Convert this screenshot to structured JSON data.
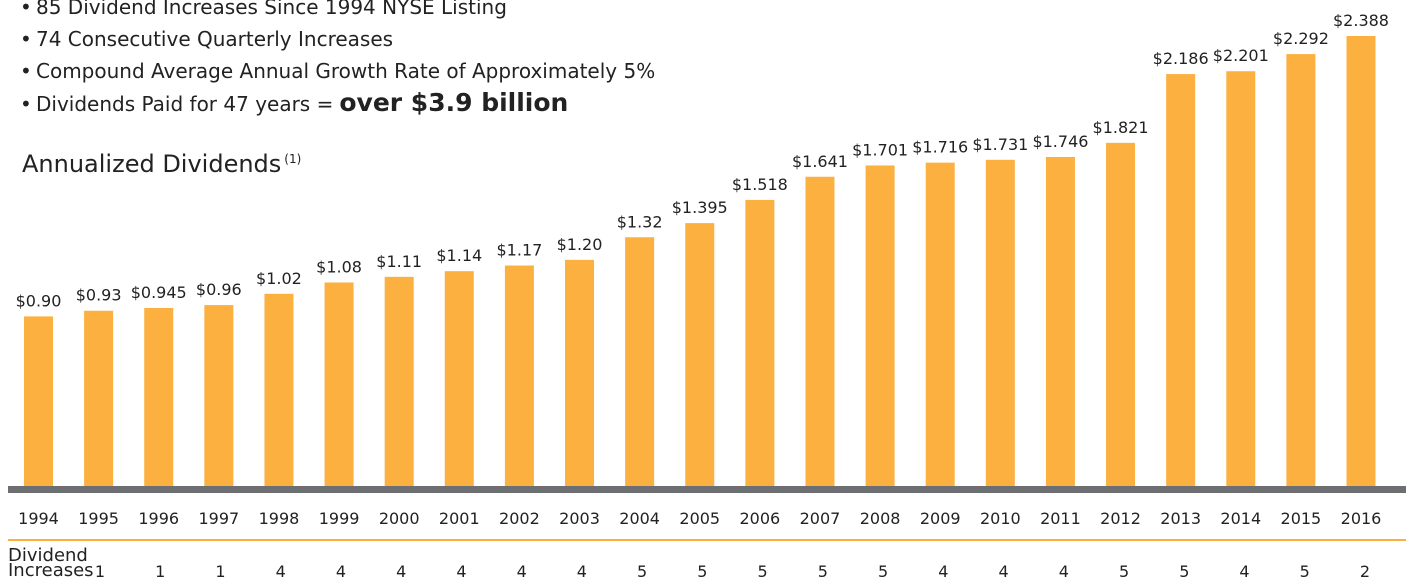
{
  "bullets": [
    {
      "text": "85 Dividend Increases Since 1994 NYSE Listing",
      "strong": ""
    },
    {
      "text": "74 Consecutive Quarterly Increases",
      "strong": ""
    },
    {
      "text": "Compound Average Annual Growth Rate of Approximately 5%",
      "strong": ""
    },
    {
      "text": "Dividends Paid for 47 years =",
      "strong": "over $3.9 billion"
    }
  ],
  "chart_title": "Annualized Dividends",
  "chart_title_note": "(1)",
  "increases_header": [
    "Dividend",
    "Increases"
  ],
  "chart_data": {
    "type": "bar",
    "title": "Annualized Dividends",
    "categories": [
      "1994",
      "1995",
      "1996",
      "1997",
      "1998",
      "1999",
      "2000",
      "2001",
      "2002",
      "2003",
      "2004",
      "2005",
      "2006",
      "2007",
      "2008",
      "2009",
      "2010",
      "2011",
      "2012",
      "2013",
      "2014",
      "2015",
      "2016"
    ],
    "values": [
      0.9,
      0.93,
      0.945,
      0.96,
      1.02,
      1.08,
      1.11,
      1.14,
      1.17,
      1.2,
      1.32,
      1.395,
      1.518,
      1.641,
      1.701,
      1.716,
      1.731,
      1.746,
      1.821,
      2.186,
      2.201,
      2.292,
      2.388
    ],
    "value_labels": [
      "$0.90",
      "$0.93",
      "$0.945",
      "$0.96",
      "$1.02",
      "$1.08",
      "$1.11",
      "$1.14",
      "$1.17",
      "$1.20",
      "$1.32",
      "$1.395",
      "$1.518",
      "$1.641",
      "$1.701",
      "$1.716",
      "$1.731",
      "$1.746",
      "$1.821",
      "$2.186",
      "$2.201",
      "$2.292",
      "$2.388"
    ],
    "dividend_increases": [
      1,
      1,
      1,
      4,
      4,
      4,
      4,
      4,
      4,
      5,
      5,
      5,
      5,
      5,
      4,
      4,
      4,
      5,
      5,
      4,
      5,
      2
    ],
    "ylim": [
      0,
      2.388
    ],
    "bar_color": "#fbb040",
    "axis_color": "#6d6e71",
    "grid": false
  }
}
